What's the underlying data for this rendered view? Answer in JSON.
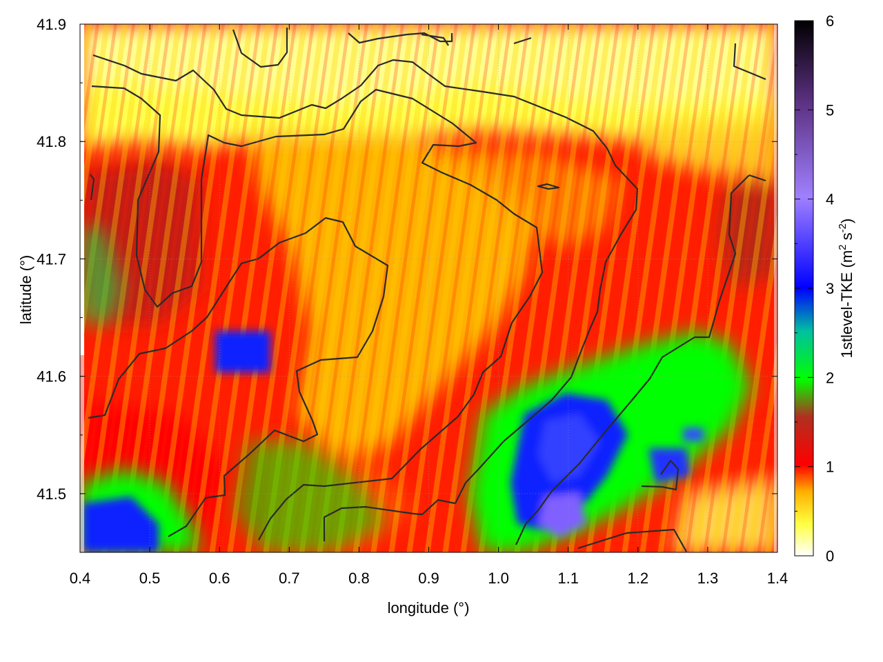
{
  "chart_data": {
    "type": "heatmap",
    "title": "",
    "xlabel": "longitude (°)",
    "ylabel": "latitude (°)",
    "xlim": [
      0.4,
      1.4
    ],
    "ylim": [
      41.45,
      41.9
    ],
    "x_ticks": [
      {
        "value": 0.4,
        "label": "0.4"
      },
      {
        "value": 0.5,
        "label": "0.5"
      },
      {
        "value": 0.6,
        "label": "0.6"
      },
      {
        "value": 0.7,
        "label": "0.7"
      },
      {
        "value": 0.8,
        "label": "0.8"
      },
      {
        "value": 0.9,
        "label": "0.9"
      },
      {
        "value": 1.0,
        "label": "1.0"
      },
      {
        "value": 1.1,
        "label": "1.1"
      },
      {
        "value": 1.2,
        "label": "1.2"
      },
      {
        "value": 1.3,
        "label": "1.3"
      },
      {
        "value": 1.4,
        "label": "1.4"
      }
    ],
    "y_ticks": [
      {
        "value": 41.5,
        "label": "41.5"
      },
      {
        "value": 41.6,
        "label": "41.6"
      },
      {
        "value": 41.7,
        "label": "41.7"
      },
      {
        "value": 41.8,
        "label": "41.8"
      },
      {
        "value": 41.9,
        "label": "41.9"
      }
    ],
    "grid": true,
    "colorbar": {
      "label_main": "1stlevel-TKE (m",
      "label_sup1": "2",
      "label_mid": " s",
      "label_sup2": "-2",
      "label_end": ")",
      "range": [
        0,
        6
      ],
      "ticks": [
        {
          "value": 0,
          "label": "0"
        },
        {
          "value": 1,
          "label": "1"
        },
        {
          "value": 2,
          "label": "2"
        },
        {
          "value": 3,
          "label": "3"
        },
        {
          "value": 4,
          "label": "4"
        },
        {
          "value": 5,
          "label": "5"
        },
        {
          "value": 6,
          "label": "6"
        }
      ],
      "palette": [
        [
          0.0,
          "#ffffff"
        ],
        [
          0.06,
          "#ffff40"
        ],
        [
          0.12,
          "#ffb000"
        ],
        [
          0.17,
          "#ff0000"
        ],
        [
          0.26,
          "#b03020"
        ],
        [
          0.33,
          "#00ff00"
        ],
        [
          0.42,
          "#00c0a0"
        ],
        [
          0.5,
          "#0000ff"
        ],
        [
          0.67,
          "#a080ff"
        ],
        [
          0.85,
          "#5a3080"
        ],
        [
          1.0,
          "#000000"
        ]
      ]
    },
    "tke_field_approx": [
      {
        "region": "northern strip (lat 41.80-41.90)",
        "tke": 0.4
      },
      {
        "region": "west-central (lon 0.45-0.60, lat 41.55-41.80)",
        "tke": 1.2
      },
      {
        "region": "central valley (lon 0.65-1.0, lat 41.55-41.80)",
        "tke": 0.8
      },
      {
        "region": "east (lon 1.1-1.4, lat 41.65-41.80)",
        "tke": 1.0
      },
      {
        "region": "southeast basin (lon 1.02-1.30, lat 41.45-41.60)",
        "tke": 2.8
      },
      {
        "region": "southwest corner (lon 0.40-0.52, lat 41.45-41.52)",
        "tke": 2.6
      },
      {
        "region": "isolated cells (lon 0.60-0.66, lat 41.61-41.63)",
        "tke": 3.0
      }
    ]
  }
}
